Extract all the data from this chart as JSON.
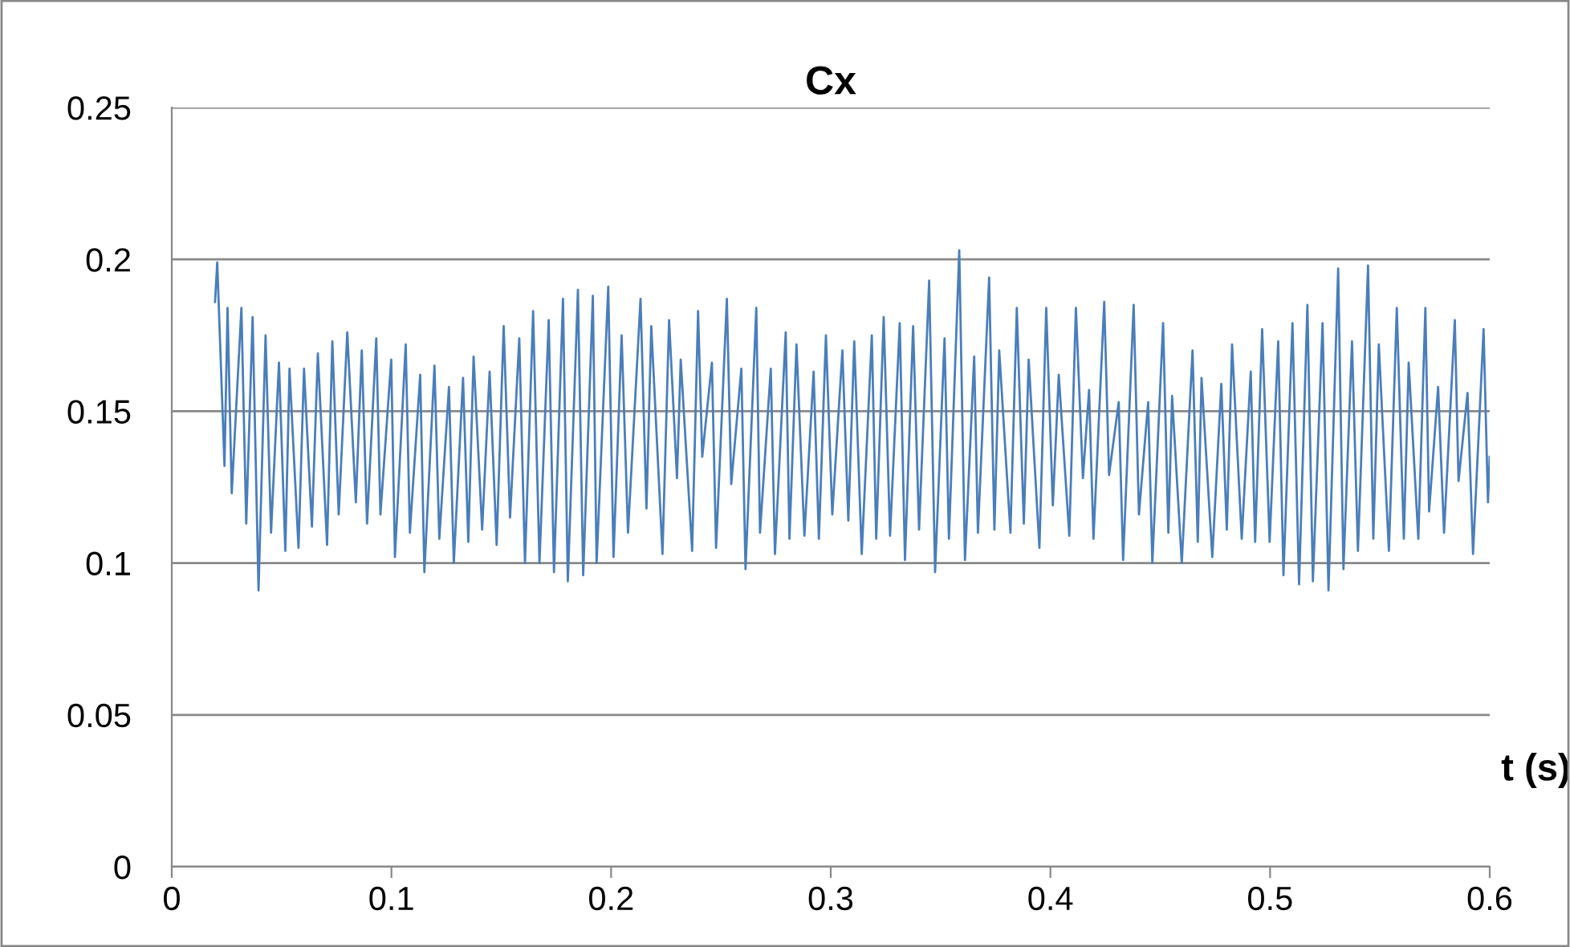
{
  "chart_data": {
    "type": "line",
    "title": "Cx",
    "xlabel": "t (s)",
    "xlim": [
      0,
      0.6
    ],
    "xticks": [
      0,
      0.1,
      0.2,
      0.3,
      0.4,
      0.5,
      0.6
    ],
    "ylim": [
      0,
      0.25
    ],
    "yticks": [
      0,
      0.05,
      0.1,
      0.15,
      0.2,
      0.25
    ],
    "grid": "y",
    "marker": "none",
    "line_style": "solid",
    "series": [
      {
        "color": "#4a7ebb",
        "x": [
          0.0197,
          0.0207,
          0.024,
          0.0254,
          0.0273,
          0.0317,
          0.0339,
          0.0368,
          0.0395,
          0.0427,
          0.0452,
          0.0488,
          0.0517,
          0.0536,
          0.0577,
          0.0602,
          0.0638,
          0.0665,
          0.0707,
          0.0731,
          0.076,
          0.0799,
          0.0838,
          0.0865,
          0.0889,
          0.0931,
          0.095,
          0.0999,
          0.1016,
          0.1065,
          0.1084,
          0.1131,
          0.115,
          0.1196,
          0.1218,
          0.1262,
          0.1284,
          0.1326,
          0.135,
          0.1374,
          0.1413,
          0.1447,
          0.1479,
          0.1511,
          0.154,
          0.1582,
          0.1608,
          0.1645,
          0.1674,
          0.1716,
          0.174,
          0.1781,
          0.1803,
          0.1849,
          0.1873,
          0.1917,
          0.1934,
          0.1987,
          0.2011,
          0.2048,
          0.2077,
          0.2134,
          0.2161,
          0.2183,
          0.2234,
          0.2264,
          0.23,
          0.2317,
          0.2369,
          0.2396,
          0.2415,
          0.2459,
          0.2478,
          0.2527,
          0.2547,
          0.2593,
          0.2612,
          0.2661,
          0.2678,
          0.2727,
          0.2746,
          0.2795,
          0.2812,
          0.2844,
          0.288,
          0.2922,
          0.2946,
          0.2978,
          0.3007,
          0.3053,
          0.308,
          0.3107,
          0.3141,
          0.3187,
          0.3207,
          0.3241,
          0.327,
          0.3314,
          0.3338,
          0.3375,
          0.3402,
          0.3448,
          0.3475,
          0.3518,
          0.3538,
          0.3585,
          0.3611,
          0.3653,
          0.367,
          0.3721,
          0.3745,
          0.3767,
          0.3818,
          0.3847,
          0.3879,
          0.3901,
          0.395,
          0.3981,
          0.4011,
          0.4038,
          0.4086,
          0.4116,
          0.4148,
          0.4176,
          0.4196,
          0.4245,
          0.4267,
          0.4311,
          0.4331,
          0.4379,
          0.4403,
          0.4445,
          0.4464,
          0.4513,
          0.4537,
          0.4554,
          0.4598,
          0.4647,
          0.4671,
          0.4688,
          0.4737,
          0.4778,
          0.4803,
          0.4827,
          0.4871,
          0.4912,
          0.4932,
          0.4964,
          0.4998,
          0.5037,
          0.5061,
          0.5102,
          0.5132,
          0.517,
          0.5195,
          0.5239,
          0.5266,
          0.531,
          0.5334,
          0.5373,
          0.54,
          0.5446,
          0.547,
          0.5495,
          0.5541,
          0.5577,
          0.5609,
          0.5631,
          0.5675,
          0.5707,
          0.5724,
          0.5765,
          0.5792,
          0.5841,
          0.5858,
          0.5899,
          0.5924,
          0.5972,
          0.5992,
          0.6
        ],
        "values": [
          0.186,
          0.199,
          0.132,
          0.184,
          0.123,
          0.184,
          0.113,
          0.181,
          0.091,
          0.175,
          0.11,
          0.166,
          0.104,
          0.164,
          0.105,
          0.164,
          0.112,
          0.169,
          0.106,
          0.173,
          0.116,
          0.176,
          0.12,
          0.17,
          0.113,
          0.174,
          0.116,
          0.167,
          0.102,
          0.172,
          0.11,
          0.162,
          0.097,
          0.165,
          0.108,
          0.158,
          0.1,
          0.161,
          0.107,
          0.168,
          0.111,
          0.163,
          0.106,
          0.178,
          0.115,
          0.174,
          0.1,
          0.183,
          0.1,
          0.18,
          0.097,
          0.187,
          0.094,
          0.19,
          0.096,
          0.188,
          0.1,
          0.191,
          0.102,
          0.175,
          0.11,
          0.187,
          0.118,
          0.178,
          0.103,
          0.18,
          0.128,
          0.167,
          0.104,
          0.183,
          0.135,
          0.166,
          0.105,
          0.187,
          0.126,
          0.164,
          0.098,
          0.184,
          0.11,
          0.164,
          0.103,
          0.176,
          0.108,
          0.172,
          0.109,
          0.163,
          0.108,
          0.175,
          0.116,
          0.17,
          0.114,
          0.173,
          0.103,
          0.175,
          0.108,
          0.181,
          0.109,
          0.179,
          0.101,
          0.178,
          0.111,
          0.193,
          0.097,
          0.174,
          0.108,
          0.203,
          0.101,
          0.168,
          0.11,
          0.194,
          0.111,
          0.17,
          0.11,
          0.184,
          0.113,
          0.167,
          0.105,
          0.184,
          0.119,
          0.162,
          0.109,
          0.184,
          0.128,
          0.157,
          0.108,
          0.186,
          0.129,
          0.153,
          0.101,
          0.185,
          0.116,
          0.153,
          0.1,
          0.179,
          0.11,
          0.155,
          0.1,
          0.17,
          0.107,
          0.161,
          0.102,
          0.159,
          0.111,
          0.172,
          0.108,
          0.163,
          0.107,
          0.177,
          0.107,
          0.173,
          0.096,
          0.179,
          0.093,
          0.185,
          0.094,
          0.179,
          0.091,
          0.197,
          0.098,
          0.173,
          0.104,
          0.198,
          0.108,
          0.172,
          0.104,
          0.184,
          0.108,
          0.166,
          0.108,
          0.184,
          0.117,
          0.158,
          0.11,
          0.18,
          0.127,
          0.156,
          0.103,
          0.177,
          0.12,
          0.135
        ]
      }
    ]
  }
}
